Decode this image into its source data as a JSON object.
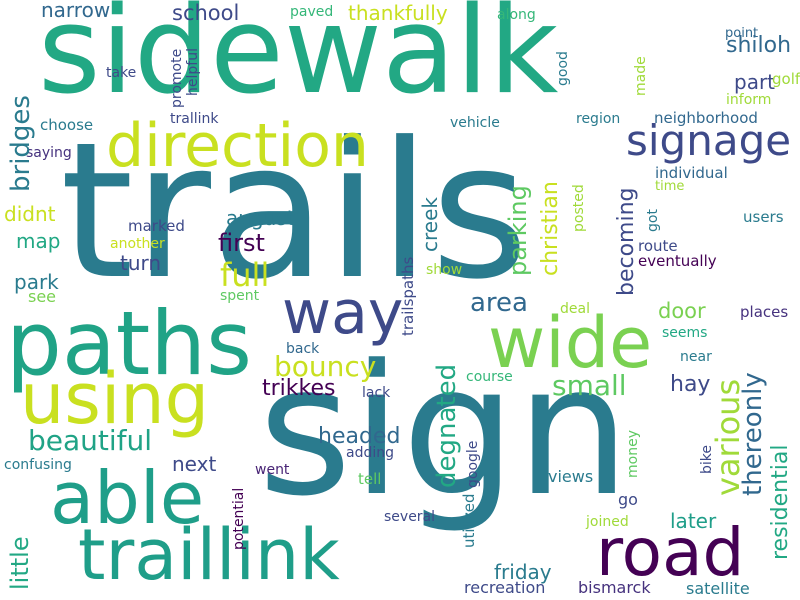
{
  "words": [
    {
      "text": "trails",
      "color": "#2a7b8e",
      "orient": "h"
    },
    {
      "text": "sign",
      "color": "#2a7b8e",
      "orient": "h"
    },
    {
      "text": "sidewalk",
      "color": "#22a884",
      "orient": "h"
    },
    {
      "text": "paths",
      "color": "#20a386",
      "orient": "h"
    },
    {
      "text": "using",
      "color": "#c9e020",
      "orient": "h"
    },
    {
      "text": "able",
      "color": "#1f9e89",
      "orient": "h"
    },
    {
      "text": "traillink",
      "color": "#1f9e89",
      "orient": "h"
    },
    {
      "text": "road",
      "color": "#440154",
      "orient": "h"
    },
    {
      "text": "way",
      "color": "#3e4a89",
      "orient": "h"
    },
    {
      "text": "wide",
      "color": "#7ad151",
      "orient": "h"
    },
    {
      "text": "direction",
      "color": "#c9e020",
      "orient": "h"
    },
    {
      "text": "signage",
      "color": "#3e4a89",
      "orient": "h"
    },
    {
      "text": "shiloh",
      "color": "#31688e",
      "orient": "h"
    },
    {
      "text": "part",
      "color": "#3e4a89",
      "orient": "h"
    },
    {
      "text": "golf",
      "color": "#a0da39",
      "orient": "h"
    },
    {
      "text": "point",
      "color": "#31688e",
      "orient": "h"
    },
    {
      "text": "inform",
      "color": "#a0da39",
      "orient": "h"
    },
    {
      "text": "neighborhood",
      "color": "#31688e",
      "orient": "h"
    },
    {
      "text": "narrow",
      "color": "#31688e",
      "orient": "h"
    },
    {
      "text": "school",
      "color": "#3e4a89",
      "orient": "h"
    },
    {
      "text": "thankfully",
      "color": "#c9e020",
      "orient": "h"
    },
    {
      "text": "paved",
      "color": "#35b779",
      "orient": "h"
    },
    {
      "text": "along",
      "color": "#35b779",
      "orient": "h"
    },
    {
      "text": "take",
      "color": "#3e4a89",
      "orient": "h"
    },
    {
      "text": "choose",
      "color": "#2a7b8e",
      "orient": "h"
    },
    {
      "text": "saying",
      "color": "#46327e",
      "orient": "h"
    },
    {
      "text": "trallink",
      "color": "#3e4a89",
      "orient": "h"
    },
    {
      "text": "vehicle",
      "color": "#2a7b8e",
      "orient": "h"
    },
    {
      "text": "region",
      "color": "#2a7b8e",
      "orient": "h"
    },
    {
      "text": "didnt",
      "color": "#c9e020",
      "orient": "h"
    },
    {
      "text": "marked",
      "color": "#3e4a89",
      "orient": "h"
    },
    {
      "text": "august",
      "color": "#2a7b8e",
      "orient": "h"
    },
    {
      "text": "map",
      "color": "#22a884",
      "orient": "h"
    },
    {
      "text": "another",
      "color": "#c9e020",
      "orient": "h"
    },
    {
      "text": "first",
      "color": "#440154",
      "orient": "h"
    },
    {
      "text": "turn",
      "color": "#3e4a89",
      "orient": "h"
    },
    {
      "text": "full",
      "color": "#c9e020",
      "orient": "h"
    },
    {
      "text": "park",
      "color": "#2a7b8e",
      "orient": "h"
    },
    {
      "text": "see",
      "color": "#7ad151",
      "orient": "h"
    },
    {
      "text": "spent",
      "color": "#5ec962",
      "orient": "h"
    },
    {
      "text": "individual",
      "color": "#31688e",
      "orient": "h"
    },
    {
      "text": "time",
      "color": "#a0da39",
      "orient": "h"
    },
    {
      "text": "users",
      "color": "#2a7b8e",
      "orient": "h"
    },
    {
      "text": "route",
      "color": "#3e4a89",
      "orient": "h"
    },
    {
      "text": "eventually",
      "color": "#440154",
      "orient": "h"
    },
    {
      "text": "show",
      "color": "#a0da39",
      "orient": "h"
    },
    {
      "text": "area",
      "color": "#31688e",
      "orient": "h"
    },
    {
      "text": "deal",
      "color": "#a0da39",
      "orient": "h"
    },
    {
      "text": "door",
      "color": "#7ad151",
      "orient": "h"
    },
    {
      "text": "places",
      "color": "#46327e",
      "orient": "h"
    },
    {
      "text": "seems",
      "color": "#22a884",
      "orient": "h"
    },
    {
      "text": "near",
      "color": "#2a7b8e",
      "orient": "h"
    },
    {
      "text": "bouncy",
      "color": "#c9e020",
      "orient": "h"
    },
    {
      "text": "back",
      "color": "#31688e",
      "orient": "h"
    },
    {
      "text": "small",
      "color": "#5ec962",
      "orient": "h"
    },
    {
      "text": "hay",
      "color": "#3e4a89",
      "orient": "h"
    },
    {
      "text": "trikkes",
      "color": "#440154",
      "orient": "h"
    },
    {
      "text": "lack",
      "color": "#3e4a89",
      "orient": "h"
    },
    {
      "text": "course",
      "color": "#35b779",
      "orient": "h"
    },
    {
      "text": "beautiful",
      "color": "#20a386",
      "orient": "h"
    },
    {
      "text": "headed",
      "color": "#31688e",
      "orient": "h"
    },
    {
      "text": "adding",
      "color": "#3e4a89",
      "orient": "h"
    },
    {
      "text": "next",
      "color": "#3e4a89",
      "orient": "h"
    },
    {
      "text": "went",
      "color": "#482475",
      "orient": "h"
    },
    {
      "text": "confusing",
      "color": "#2a7b8e",
      "orient": "h"
    },
    {
      "text": "tell",
      "color": "#5ec962",
      "orient": "h"
    },
    {
      "text": "views",
      "color": "#2a7b8e",
      "orient": "h"
    },
    {
      "text": "go",
      "color": "#3e4a89",
      "orient": "h"
    },
    {
      "text": "later",
      "color": "#1f9e89",
      "orient": "h"
    },
    {
      "text": "several",
      "color": "#3e4a89",
      "orient": "h"
    },
    {
      "text": "joined",
      "color": "#a0da39",
      "orient": "h"
    },
    {
      "text": "friday",
      "color": "#2a7b8e",
      "orient": "h"
    },
    {
      "text": "recreation",
      "color": "#3e4a89",
      "orient": "h"
    },
    {
      "text": "bismarck",
      "color": "#46327e",
      "orient": "h"
    },
    {
      "text": "satellite",
      "color": "#2a7b8e",
      "orient": "h"
    },
    {
      "text": "bridges",
      "color": "#2a7b8e",
      "orient": "v"
    },
    {
      "text": "promote",
      "color": "#3e4a89",
      "orient": "v"
    },
    {
      "text": "helpful",
      "color": "#3e4a89",
      "orient": "v"
    },
    {
      "text": "good",
      "color": "#2a7b8e",
      "orient": "v"
    },
    {
      "text": "made",
      "color": "#a0da39",
      "orient": "v"
    },
    {
      "text": "parking",
      "color": "#5ec962",
      "orient": "v"
    },
    {
      "text": "christian",
      "color": "#c9e020",
      "orient": "v"
    },
    {
      "text": "posted",
      "color": "#a0da39",
      "orient": "v"
    },
    {
      "text": "creek",
      "color": "#2a7b8e",
      "orient": "v"
    },
    {
      "text": "becoming",
      "color": "#3e4a89",
      "orient": "v"
    },
    {
      "text": "got",
      "color": "#2a7b8e",
      "orient": "v"
    },
    {
      "text": "trailspaths",
      "color": "#3e4a89",
      "orient": "v"
    },
    {
      "text": "degnated",
      "color": "#22a884",
      "orient": "v"
    },
    {
      "text": "various",
      "color": "#a0da39",
      "orient": "v"
    },
    {
      "text": "thereonly",
      "color": "#31688e",
      "orient": "v"
    },
    {
      "text": "residential",
      "color": "#22a884",
      "orient": "v"
    },
    {
      "text": "little",
      "color": "#22a884",
      "orient": "v"
    },
    {
      "text": "potential",
      "color": "#440154",
      "orient": "v"
    },
    {
      "text": "google",
      "color": "#3e4a89",
      "orient": "v"
    },
    {
      "text": "utilized",
      "color": "#2a7b8e",
      "orient": "v"
    },
    {
      "text": "money",
      "color": "#5ec962",
      "orient": "v"
    },
    {
      "text": "bike",
      "color": "#3e4a89",
      "orient": "v"
    }
  ]
}
